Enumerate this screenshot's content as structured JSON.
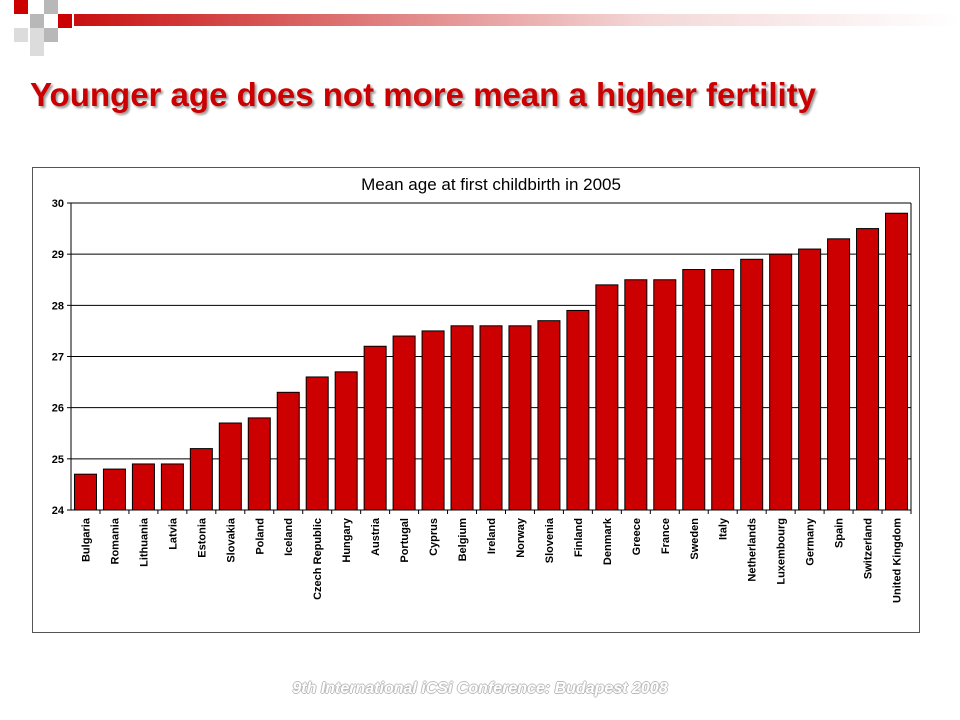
{
  "slide": {
    "title": "Younger age does not more mean a higher fertility",
    "footer": "9th International iCSi Conference: Budapest 2008"
  },
  "colors": {
    "accent": "#cc0000",
    "bar_fill": "#cc0000",
    "bar_stroke": "#000000"
  },
  "chart_data": {
    "type": "bar",
    "title": "Mean age at first childbirth in 2005",
    "xlabel": "",
    "ylabel": "",
    "ylim": [
      24,
      30
    ],
    "yticks": [
      24,
      25,
      26,
      27,
      28,
      29,
      30
    ],
    "grid": true,
    "legend": "none",
    "categories": [
      "Bulgaria",
      "Romania",
      "Lithuania",
      "Latvia",
      "Estonia",
      "Slovakia",
      "Poland",
      "Iceland",
      "Czech Republic",
      "Hungary",
      "Austria",
      "Portugal",
      "Cyprus",
      "Belgium",
      "Ireland",
      "Norway",
      "Slovenia",
      "Finland",
      "Denmark",
      "Greece",
      "France",
      "Sweden",
      "Italy",
      "Netherlands",
      "Luxembourg",
      "Germany",
      "Spain",
      "Switzerland",
      "United Kingdom"
    ],
    "values": [
      24.7,
      24.8,
      24.9,
      24.9,
      25.2,
      25.7,
      25.8,
      26.3,
      26.6,
      26.7,
      27.2,
      27.4,
      27.5,
      27.6,
      27.6,
      27.6,
      27.7,
      27.9,
      28.4,
      28.5,
      28.5,
      28.7,
      28.7,
      28.9,
      29.0,
      29.1,
      29.3,
      29.5,
      29.8
    ]
  }
}
